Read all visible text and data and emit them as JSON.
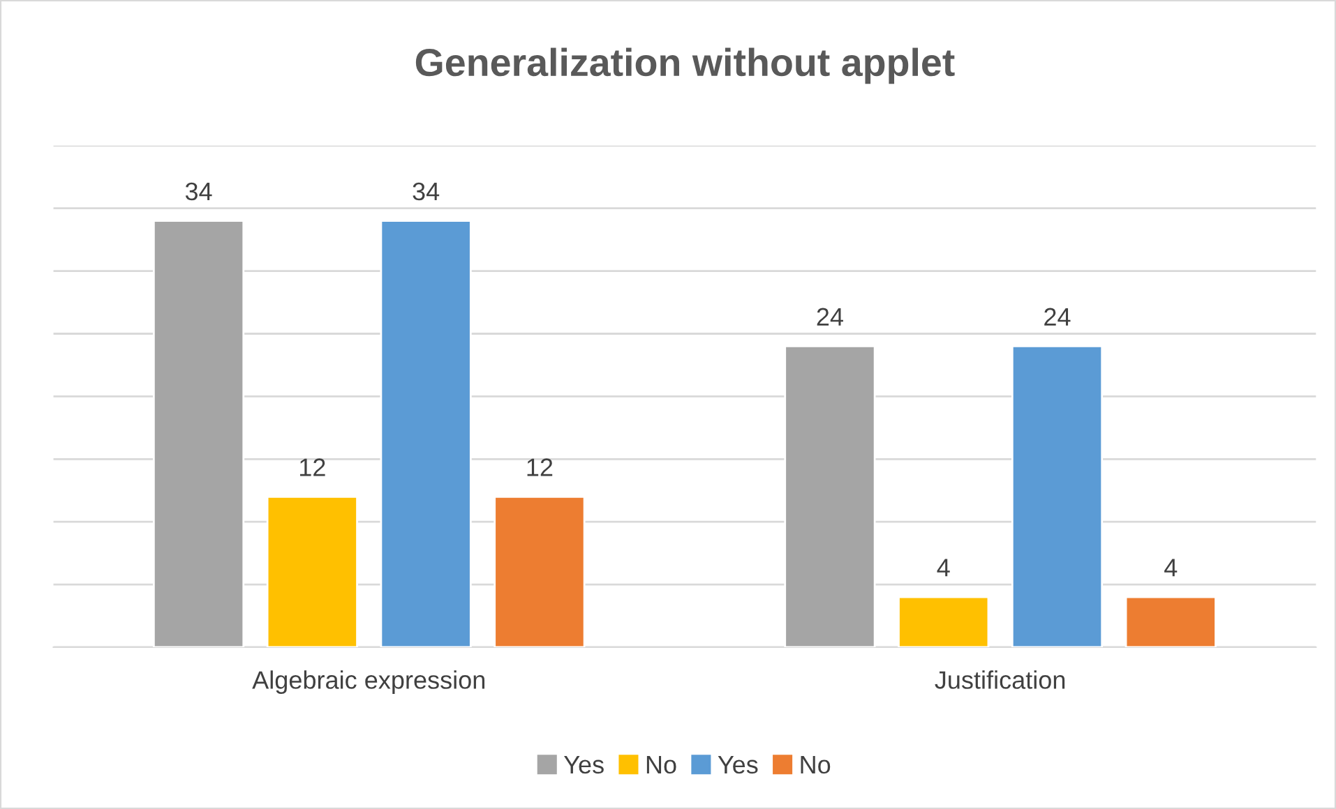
{
  "chart_data": {
    "type": "bar",
    "title": "Generalization without applet",
    "categories": [
      "Algebraic expression",
      "Justification"
    ],
    "series": [
      {
        "name": "Yes",
        "color": "#a5a5a5",
        "values": [
          34,
          24
        ]
      },
      {
        "name": "No",
        "color": "#ffc000",
        "values": [
          12,
          4
        ]
      },
      {
        "name": "Yes",
        "color": "#5b9bd5",
        "values": [
          34,
          24
        ]
      },
      {
        "name": "No",
        "color": "#ed7d31",
        "values": [
          12,
          4
        ]
      }
    ],
    "ylim": [
      0,
      40
    ],
    "yticks": [
      {
        "value": 0,
        "label": null
      },
      {
        "value": 5,
        "label": null
      },
      {
        "value": 10,
        "label": null
      },
      {
        "value": 15,
        "label": null
      },
      {
        "value": 20,
        "label": null
      },
      {
        "value": 25,
        "label": null
      },
      {
        "value": 30,
        "label": null
      },
      {
        "value": 35,
        "label": null
      },
      {
        "value": 40,
        "label": null
      }
    ],
    "tick_labels": "x",
    "grid": "y",
    "legend": "bottom",
    "data_labels": true
  }
}
